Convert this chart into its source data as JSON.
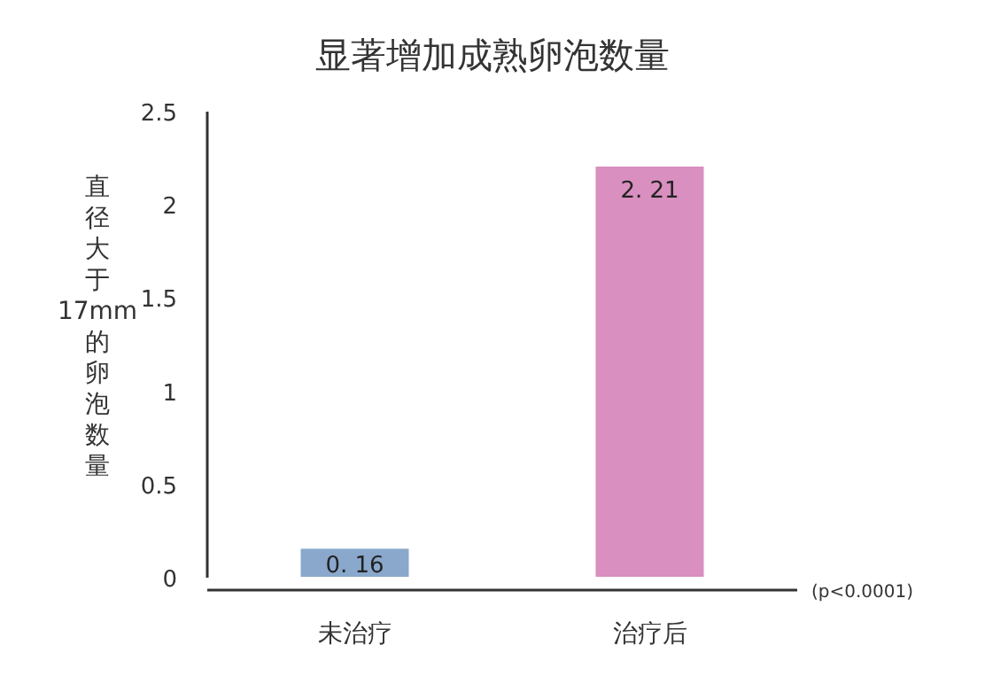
{
  "chart_data": {
    "type": "bar",
    "title": "显著增加成熟卵泡数量",
    "ylabel": "直径大于17mm的卵泡数量",
    "categories": [
      "未治疗",
      "治疗后"
    ],
    "values": [
      0.16,
      2.21
    ],
    "value_labels": [
      "0. 16",
      "2. 21"
    ],
    "colors": [
      "#8aa8cc",
      "#d98fbf"
    ],
    "ylim": [
      0,
      2.5
    ],
    "yticks": [
      0,
      0.5,
      1,
      1.5,
      2,
      2.5
    ],
    "annotations": [
      "(p<0.0001)"
    ]
  }
}
